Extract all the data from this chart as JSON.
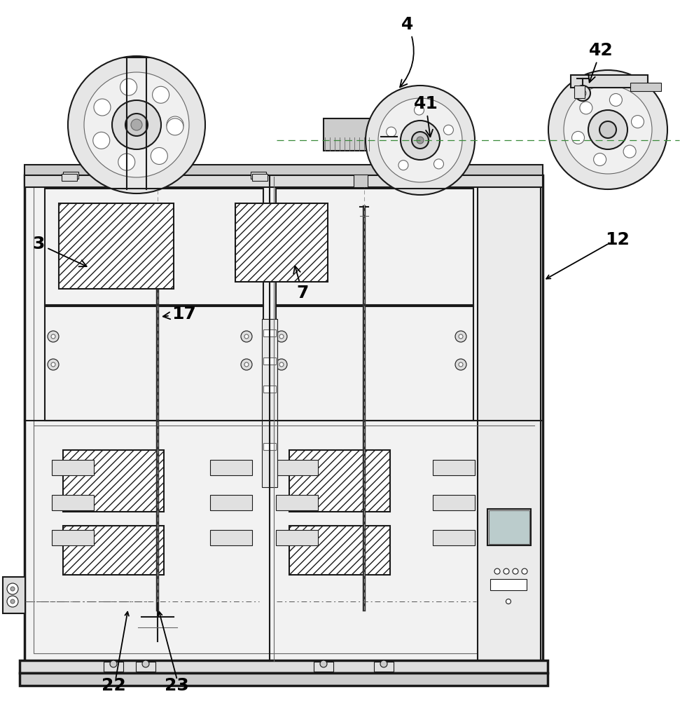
{
  "bg_color": "#ffffff",
  "line_color": "#1a1a1a",
  "light_line": "#666666",
  "label_fontsize": 18,
  "annotation_color": "#000000",
  "labels": {
    "3": {
      "text": [
        58,
        625
      ],
      "arrow": [
        128,
        608
      ]
    },
    "4": {
      "text": [
        582,
        968
      ],
      "arrow": [
        570,
        878
      ]
    },
    "7": {
      "text": [
        432,
        582
      ],
      "arrow": [
        422,
        610
      ]
    },
    "12": {
      "text": [
        882,
        658
      ],
      "arrow": [
        776,
        625
      ]
    },
    "17": {
      "text": [
        263,
        548
      ],
      "arrow": [
        230,
        548
      ]
    },
    "22": {
      "text": [
        162,
        22
      ],
      "arrow": [
        183,
        122
      ]
    },
    "23": {
      "text": [
        252,
        22
      ],
      "arrow": [
        228,
        122
      ]
    },
    "41": {
      "text": [
        583,
        845
      ],
      "arrow": [
        593,
        800
      ]
    },
    "42": {
      "text": [
        858,
        928
      ],
      "arrow": [
        842,
        878
      ]
    }
  }
}
